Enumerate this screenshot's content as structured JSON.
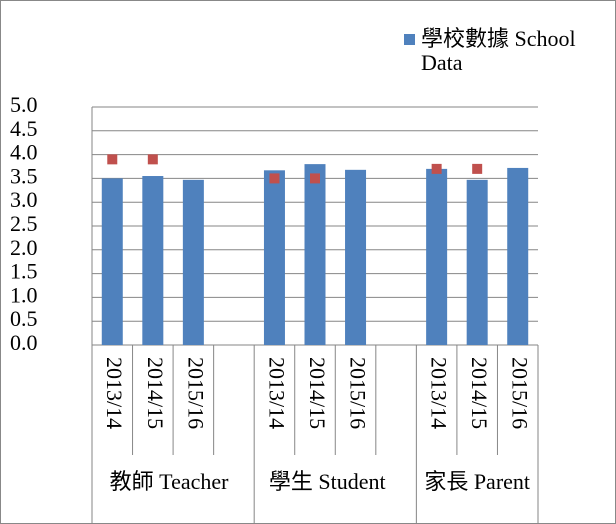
{
  "chart_data": {
    "type": "bar",
    "categories": [
      "2013/14",
      "2014/15",
      "2015/16",
      null,
      "2013/14",
      "2014/15",
      "2015/16",
      null,
      "2013/14",
      "2014/15",
      "2015/16"
    ],
    "groups": [
      "教師 Teacher",
      "學生 Student",
      "家長 Parent"
    ],
    "series": [
      {
        "name": "學校數據 School Data",
        "color": "#4f81bd",
        "type": "bar",
        "values": [
          3.5,
          3.55,
          3.47,
          null,
          3.67,
          3.8,
          3.68,
          null,
          3.7,
          3.47,
          3.72
        ]
      },
      {
        "color": "#c0504d",
        "type": "marker",
        "values": [
          3.9,
          3.9,
          null,
          null,
          3.5,
          3.5,
          null,
          null,
          3.7,
          3.7,
          null
        ]
      }
    ],
    "ylim": [
      0,
      5
    ],
    "yticks": [
      {
        "value": 0,
        "label": "0.0"
      },
      {
        "value": 0.5,
        "label": "0.5"
      },
      {
        "value": 1,
        "label": "1.0"
      },
      {
        "value": 1.5,
        "label": "1.5"
      },
      {
        "value": 2,
        "label": "2.0"
      },
      {
        "value": 2.5,
        "label": "2.5"
      },
      {
        "value": 3,
        "label": "3.0"
      },
      {
        "value": 3.5,
        "label": "3.5"
      },
      {
        "value": 4,
        "label": "4.0"
      },
      {
        "value": 4.5,
        "label": "4.5"
      },
      {
        "value": 5,
        "label": "5.0"
      }
    ],
    "grid": true,
    "legend": "top-right"
  }
}
